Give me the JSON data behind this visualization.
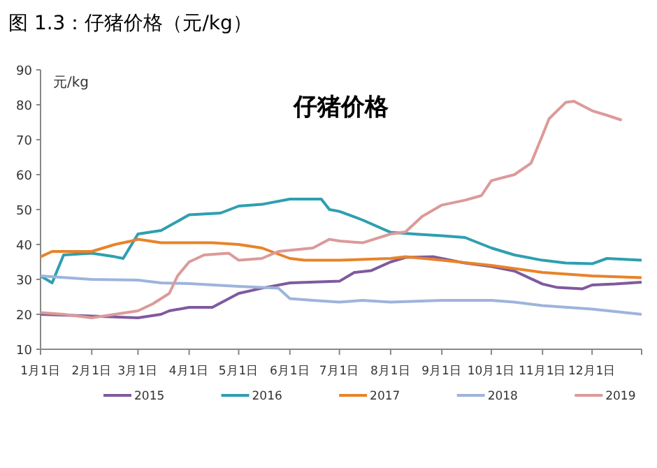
{
  "chart_data": {
    "type": "line",
    "title": "图 1.3：仔猪价格（元/kg）",
    "subtitle": "仔猪价格",
    "ylabel": "元/kg",
    "xlim": [
      "--01-01",
      "--12-31"
    ],
    "ylim": [
      10,
      90
    ],
    "yticks": [
      10,
      20,
      30,
      40,
      50,
      60,
      70,
      80,
      90
    ],
    "xticks": [
      {
        "value": "--01-01",
        "label": "1月1日"
      },
      {
        "value": "--02-01",
        "label": "2月1日"
      },
      {
        "value": "--03-01",
        "label": "3月1日"
      },
      {
        "value": "--04-01",
        "label": "4月1日"
      },
      {
        "value": "--05-01",
        "label": "5月1日"
      },
      {
        "value": "--06-01",
        "label": "6月1日"
      },
      {
        "value": "--07-01",
        "label": "7月1日"
      },
      {
        "value": "--08-01",
        "label": "8月1日"
      },
      {
        "value": "--09-01",
        "label": "9月1日"
      },
      {
        "value": "--10-01",
        "label": "10月1日"
      },
      {
        "value": "--11-01",
        "label": "11月1日"
      },
      {
        "value": "--12-01",
        "label": "12月1日"
      }
    ],
    "legend": "bottom",
    "marker": "none",
    "line_style": "solid",
    "series": [
      {
        "name": "2015",
        "color": "#7f5a9e",
        "x": [
          "--01-01",
          "--02-01",
          "--03-01",
          "--03-15",
          "--03-20",
          "--04-01",
          "--04-15",
          "--05-01",
          "--05-15",
          "--06-01",
          "--07-01",
          "--07-10",
          "--07-20",
          "--08-01",
          "--08-10",
          "--08-27",
          "--09-01",
          "--09-15",
          "--10-01",
          "--10-15",
          "--11-01",
          "--11-10",
          "--11-25",
          "--12-01",
          "--12-15",
          "--12-31"
        ],
        "values": [
          20,
          19.5,
          19,
          20,
          21,
          22,
          22,
          26,
          27.5,
          29,
          29.5,
          32,
          32.5,
          35,
          36.3,
          36.5,
          36,
          34.7,
          33.7,
          32.4,
          28.7,
          27.7,
          27.3,
          28.4,
          28.7,
          29.2
        ]
      },
      {
        "name": "2016",
        "color": "#2e9fb0",
        "x": [
          "--01-01",
          "--01-08",
          "--01-15",
          "--02-01",
          "--02-15",
          "--02-20",
          "--03-01",
          "--03-15",
          "--04-01",
          "--04-20",
          "--05-01",
          "--05-15",
          "--06-01",
          "--06-20",
          "--06-25",
          "--07-01",
          "--07-15",
          "--08-01",
          "--08-15",
          "--09-01",
          "--09-15",
          "--10-01",
          "--10-15",
          "--11-01",
          "--11-15",
          "--12-01",
          "--12-10",
          "--12-31"
        ],
        "values": [
          31,
          29,
          37,
          37.5,
          36.5,
          36,
          43,
          44,
          48.5,
          49,
          51,
          51.5,
          53,
          53,
          50,
          49.5,
          47,
          43.5,
          43,
          42.5,
          42,
          39,
          37,
          35.5,
          34.7,
          34.5,
          36,
          35.5
        ]
      },
      {
        "name": "2017",
        "color": "#e8832a",
        "x": [
          "--01-01",
          "--01-08",
          "--02-01",
          "--02-15",
          "--02-25",
          "--03-01",
          "--03-15",
          "--04-01",
          "--04-15",
          "--05-01",
          "--05-15",
          "--06-01",
          "--06-10",
          "--07-01",
          "--08-01",
          "--08-10",
          "--09-01",
          "--10-01",
          "--11-01",
          "--12-01",
          "--12-31"
        ],
        "values": [
          36.5,
          38,
          38,
          40,
          41,
          41.5,
          40.5,
          40.5,
          40.5,
          40,
          39,
          36,
          35.5,
          35.5,
          36,
          36.5,
          35.5,
          34,
          32,
          31,
          30.5
        ]
      },
      {
        "name": "2018",
        "color": "#9db4dc",
        "x": [
          "--01-01",
          "--02-01",
          "--03-01",
          "--03-15",
          "--04-01",
          "--05-01",
          "--05-25",
          "--06-01",
          "--06-15",
          "--07-01",
          "--07-15",
          "--08-01",
          "--09-01",
          "--10-01",
          "--10-15",
          "--11-01",
          "--12-01",
          "--12-31"
        ],
        "values": [
          31,
          30,
          29.8,
          29,
          28.8,
          28,
          27.5,
          24.5,
          24,
          23.5,
          24,
          23.5,
          24,
          24,
          23.5,
          22.5,
          21.5,
          20
        ]
      },
      {
        "name": "2019",
        "color": "#dc9a9a",
        "x": [
          "--01-01",
          "--01-15",
          "--02-01",
          "--03-01",
          "--03-10",
          "--03-20",
          "--03-25",
          "--04-01",
          "--04-10",
          "--04-25",
          "--05-01",
          "--05-15",
          "--05-25",
          "--06-15",
          "--06-25",
          "--07-01",
          "--07-15",
          "--08-01",
          "--08-10",
          "--08-20",
          "--09-01",
          "--09-15",
          "--09-25",
          "--10-01",
          "--10-15",
          "--10-25",
          "--11-01",
          "--11-05",
          "--11-15",
          "--11-20",
          "--12-01",
          "--12-10",
          "--12-19"
        ],
        "values": [
          20.5,
          20,
          19,
          21,
          23,
          26,
          31,
          35,
          37,
          37.5,
          35.5,
          36,
          38,
          39,
          41.5,
          41,
          40.5,
          43,
          43.6,
          48,
          51.3,
          52.7,
          54,
          58.3,
          60,
          63.3,
          71.3,
          76,
          80.7,
          81,
          78.3,
          77,
          75.6
        ]
      }
    ]
  }
}
